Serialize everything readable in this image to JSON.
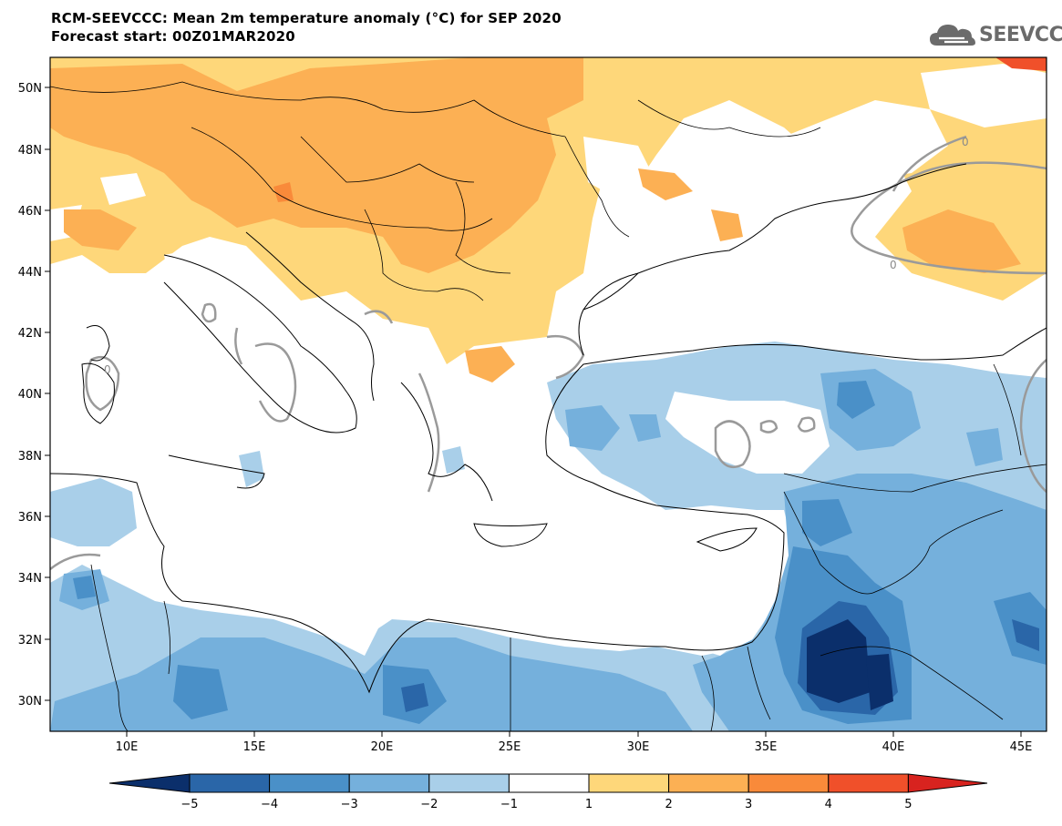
{
  "title": {
    "line1": "RCM-SEEVCCC: Mean 2m temperature anomaly (°C) for SEP 2020",
    "line2": "Forecast start: 00Z01MAR2020"
  },
  "logo": {
    "text": "SEEVCCC",
    "icon": "cloud-icon"
  },
  "axes": {
    "lat_labels": [
      "50N",
      "48N",
      "46N",
      "44N",
      "42N",
      "40N",
      "38N",
      "36N",
      "34N",
      "32N",
      "30N"
    ],
    "lon_labels": [
      "10E",
      "15E",
      "20E",
      "25E",
      "30E",
      "35E",
      "40E",
      "45E"
    ]
  },
  "contour_labels": [
    "0",
    "0",
    "0"
  ],
  "colorbar": {
    "tick_labels": [
      "−5",
      "−4",
      "−3",
      "−2",
      "−1",
      "1",
      "2",
      "3",
      "4",
      "5"
    ],
    "colors": [
      "#0b2f6b",
      "#2a66a8",
      "#4a90c8",
      "#75b0dc",
      "#a9cfe9",
      "#ffffff",
      "#fed77a",
      "#fcb054",
      "#f98a3a",
      "#f0502a",
      "#d8231f"
    ]
  }
}
